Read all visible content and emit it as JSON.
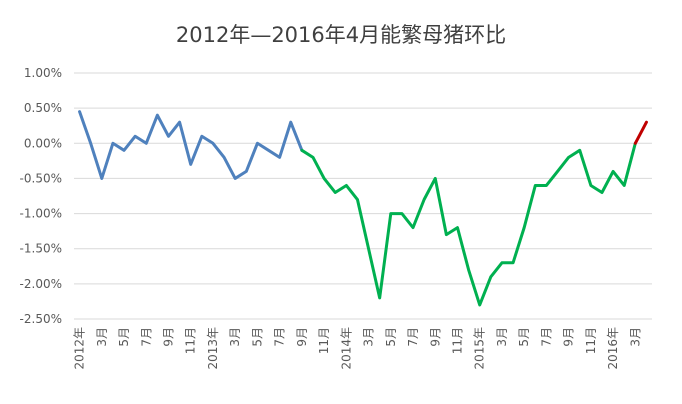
{
  "chart_data": {
    "type": "line",
    "title": "2012年—2016年4月能繁母猪环比",
    "xlabel": "",
    "ylabel": "",
    "ylim": [
      -2.5,
      1.0
    ],
    "y_ticks": [
      1.0,
      0.5,
      0.0,
      -0.5,
      -1.0,
      -1.5,
      -2.0,
      -2.5
    ],
    "y_tick_labels": [
      "1.00%",
      "0.50%",
      "0.00%",
      "-0.50%",
      "-1.00%",
      "-1.50%",
      "-2.00%",
      "-2.50%"
    ],
    "grid": true,
    "legend": "none",
    "x_tick_labels": [
      {
        "index": 0,
        "label": "2012年"
      },
      {
        "index": 2,
        "label": "3月"
      },
      {
        "index": 4,
        "label": "5月"
      },
      {
        "index": 6,
        "label": "7月"
      },
      {
        "index": 8,
        "label": "9月"
      },
      {
        "index": 10,
        "label": "11月"
      },
      {
        "index": 12,
        "label": "2013年"
      },
      {
        "index": 14,
        "label": "3月"
      },
      {
        "index": 16,
        "label": "5月"
      },
      {
        "index": 18,
        "label": "7月"
      },
      {
        "index": 20,
        "label": "9月"
      },
      {
        "index": 22,
        "label": "11月"
      },
      {
        "index": 24,
        "label": "2014年"
      },
      {
        "index": 26,
        "label": "3月"
      },
      {
        "index": 28,
        "label": "5月"
      },
      {
        "index": 30,
        "label": "7月"
      },
      {
        "index": 32,
        "label": "9月"
      },
      {
        "index": 34,
        "label": "11月"
      },
      {
        "index": 36,
        "label": "2015年"
      },
      {
        "index": 38,
        "label": "3月"
      },
      {
        "index": 40,
        "label": "5月"
      },
      {
        "index": 42,
        "label": "7月"
      },
      {
        "index": 44,
        "label": "9月"
      },
      {
        "index": 46,
        "label": "11月"
      },
      {
        "index": 48,
        "label": "2016年"
      },
      {
        "index": 50,
        "label": "3月"
      }
    ],
    "values": [
      0.45,
      0.0,
      -0.5,
      0.0,
      -0.1,
      0.1,
      0.0,
      0.4,
      0.1,
      0.3,
      -0.3,
      0.1,
      0.0,
      -0.2,
      -0.5,
      -0.4,
      0.0,
      -0.1,
      -0.2,
      0.3,
      -0.1,
      -0.2,
      -0.5,
      -0.7,
      -0.6,
      -0.8,
      -1.5,
      -2.2,
      -1.0,
      -1.0,
      -1.2,
      -0.8,
      -0.5,
      -1.3,
      -1.2,
      -1.8,
      -2.3,
      -1.9,
      -1.7,
      -1.7,
      -1.2,
      -0.6,
      -0.6,
      -0.4,
      -0.2,
      -0.1,
      -0.6,
      -0.7,
      -0.4,
      -0.6,
      0.0,
      0.3
    ],
    "series": [
      {
        "range": [
          0,
          20
        ],
        "color": "#4f81bd",
        "values": [
          0.45,
          0.0,
          -0.5,
          0.0,
          -0.1,
          0.1,
          0.0,
          0.4,
          0.1,
          0.3,
          -0.3,
          0.1,
          0.0,
          -0.2,
          -0.5,
          -0.4,
          0.0,
          -0.1,
          -0.2,
          0.3,
          -0.1
        ]
      },
      {
        "range": [
          20,
          50
        ],
        "color": "#00b050",
        "values": [
          -0.1,
          -0.2,
          -0.5,
          -0.7,
          -0.6,
          -0.8,
          -1.5,
          -2.2,
          -1.0,
          -1.0,
          -1.2,
          -0.8,
          -0.5,
          -1.3,
          -1.2,
          -1.8,
          -2.3,
          -1.9,
          -1.7,
          -1.7,
          -1.2,
          -0.6,
          -0.6,
          -0.4,
          -0.2,
          -0.1,
          -0.6,
          -0.7,
          -0.4,
          -0.6,
          0.0
        ]
      },
      {
        "range": [
          50,
          51
        ],
        "color": "#c00000",
        "values": [
          0.0,
          0.3
        ]
      }
    ]
  }
}
